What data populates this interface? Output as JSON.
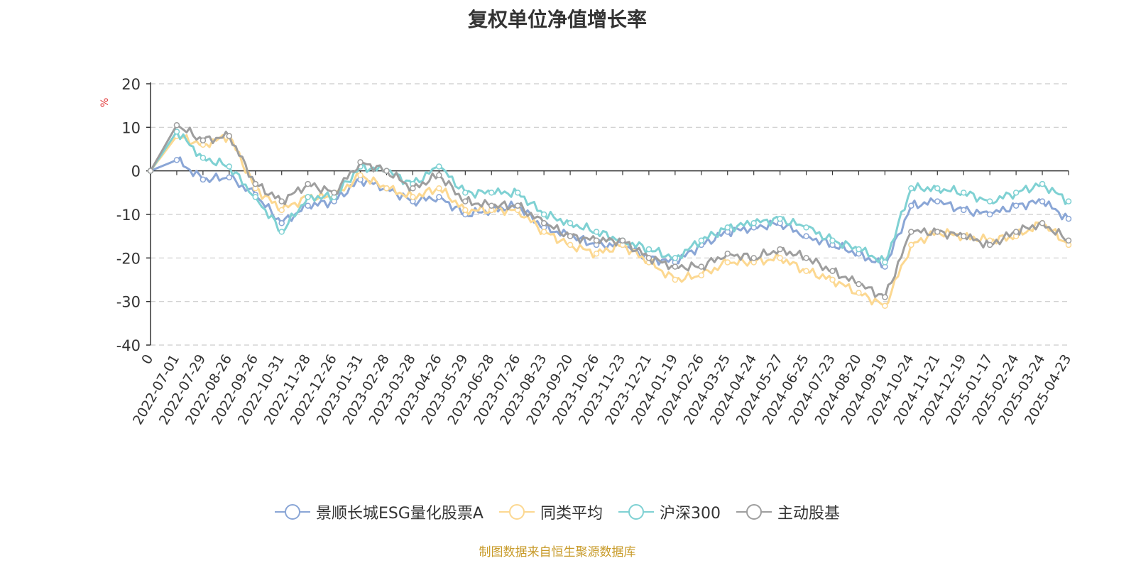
{
  "chart_data": {
    "type": "line",
    "title": "复权单位净值增长率",
    "ylabel": "%",
    "ylim": [
      -40,
      20
    ],
    "yticks": [
      20,
      10,
      0,
      -10,
      -20,
      -30,
      -40
    ],
    "grid": true,
    "legend_position": "bottom",
    "x": [
      "0",
      "2022-07-01",
      "2022-07-29",
      "2022-08-26",
      "2022-09-26",
      "2022-10-31",
      "2022-11-28",
      "2022-12-26",
      "2023-01-31",
      "2023-02-28",
      "2023-03-28",
      "2023-04-26",
      "2023-05-29",
      "2023-06-28",
      "2023-07-26",
      "2023-08-23",
      "2023-09-20",
      "2023-10-26",
      "2023-11-23",
      "2023-12-21",
      "2024-01-19",
      "2024-02-26",
      "2024-03-25",
      "2024-04-24",
      "2024-05-27",
      "2024-06-25",
      "2024-07-23",
      "2024-08-20",
      "2024-09-19",
      "2024-10-24",
      "2024-11-21",
      "2024-12-19",
      "2025-01-17",
      "2025-02-24",
      "2025-03-24",
      "2025-04-23"
    ],
    "series": [
      {
        "name": "景顺长城ESG量化股票A",
        "color": "#8aa6d6",
        "values": [
          0,
          2.5,
          -2,
          -1.5,
          -5.5,
          -12,
          -8,
          -7,
          -2,
          -4,
          -7,
          -6,
          -10,
          -9,
          -8,
          -13,
          -15,
          -17,
          -17,
          -20,
          -21,
          -17,
          -14,
          -13,
          -12,
          -15,
          -17,
          -19,
          -22,
          -8,
          -7,
          -9,
          -10,
          -8,
          -7,
          -11
        ]
      },
      {
        "name": "同类平均",
        "color": "#fcd891",
        "values": [
          0,
          8,
          6,
          8,
          -4,
          -9,
          -6,
          -6,
          -1,
          -4,
          -6,
          -4,
          -9,
          -9,
          -9,
          -14,
          -17,
          -19,
          -17,
          -21,
          -25,
          -24,
          -21,
          -21,
          -20,
          -23,
          -25,
          -28,
          -31,
          -17,
          -14,
          -15,
          -16,
          -15,
          -12,
          -17
        ]
      },
      {
        "name": "沪深300",
        "color": "#7fd1d3",
        "values": [
          0,
          9,
          3,
          1,
          -6,
          -14,
          -6,
          -6,
          1,
          0,
          -3,
          1,
          -5,
          -5,
          -5,
          -10,
          -12,
          -14,
          -16,
          -18,
          -20,
          -16,
          -13,
          -12,
          -11,
          -13,
          -16,
          -18,
          -21,
          -4,
          -4,
          -5,
          -7,
          -5,
          -3,
          -7
        ]
      },
      {
        "name": "主动股基",
        "color": "#9e9e9e",
        "values": [
          0,
          10.5,
          7,
          8,
          -3,
          -7,
          -3,
          -5,
          2,
          0,
          -4,
          -1,
          -7,
          -8,
          -8,
          -12,
          -15,
          -16,
          -16,
          -20,
          -22,
          -22,
          -19,
          -20,
          -18,
          -20,
          -23,
          -26,
          -29,
          -14,
          -14,
          -15,
          -17,
          -14,
          -12,
          -16
        ]
      }
    ]
  },
  "source_text": "制图数据来自恒生聚源数据库"
}
